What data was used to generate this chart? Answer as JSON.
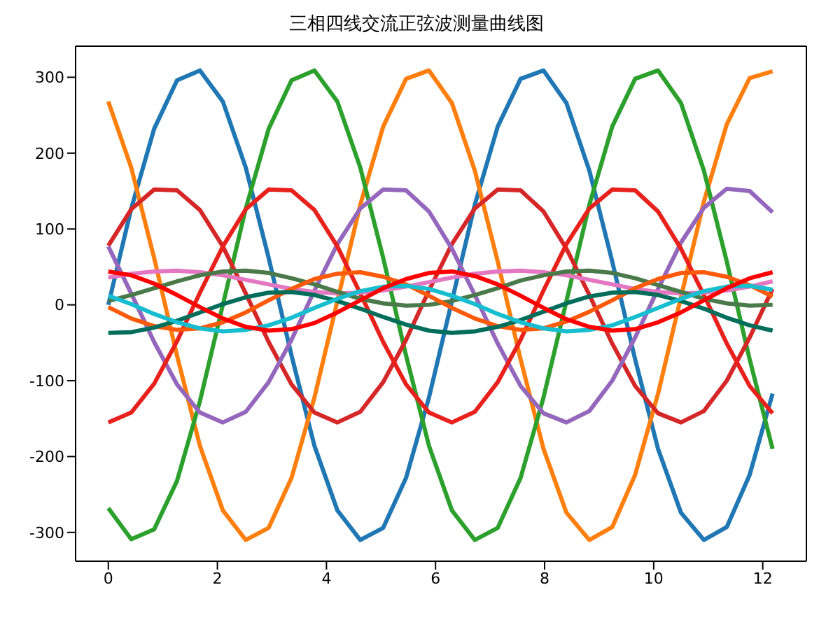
{
  "chart_data": {
    "type": "line",
    "title": "三相四线交流正弦波测量曲线图",
    "x": [
      0,
      0.42,
      0.84,
      1.26,
      1.68,
      2.1,
      2.52,
      2.94,
      3.36,
      3.78,
      4.2,
      4.62,
      5.04,
      5.46,
      5.88,
      6.3,
      6.72,
      7.14,
      7.56,
      7.98,
      8.4,
      8.82,
      9.24,
      9.66,
      10.08,
      10.5,
      10.92,
      11.34,
      11.76,
      12.18
    ],
    "series": [
      {
        "color": "#1f77b4",
        "values": [
          0,
          127,
          232,
          296,
          309,
          268,
          181,
          62,
          -67,
          -186,
          -271,
          -310,
          -294,
          -228,
          -122,
          5,
          132,
          235,
          298,
          309,
          266,
          177,
          57,
          -72,
          -190,
          -274,
          -310,
          -293,
          -224,
          -117
        ]
      },
      {
        "color": "#ff7f0e",
        "values": [
          268,
          181,
          62,
          -67,
          -186,
          -271,
          -310,
          -294,
          -228,
          -122,
          5,
          132,
          235,
          298,
          309,
          266,
          177,
          57,
          -72,
          -190,
          -274,
          -310,
          -293,
          -224,
          -117,
          10,
          136,
          238,
          299,
          308
        ]
      },
      {
        "color": "#2ca02c",
        "values": [
          -268,
          -309,
          -296,
          -232,
          -127,
          0,
          127,
          232,
          296,
          309,
          268,
          181,
          62,
          -67,
          -186,
          -271,
          -310,
          -294,
          -228,
          -122,
          5,
          132,
          235,
          298,
          309,
          266,
          177,
          57,
          -72,
          -190
        ]
      },
      {
        "color": "#d62728",
        "values": [
          78,
          126,
          152,
          151,
          125,
          77,
          15,
          -49,
          -105,
          -142,
          -155,
          -141,
          -102,
          -46,
          19,
          80,
          127,
          152,
          151,
          123,
          74,
          13,
          -51,
          -107,
          -143,
          -155,
          -140,
          -100,
          -43,
          21
        ]
      },
      {
        "color": "#9467bd",
        "values": [
          77,
          15,
          -49,
          -105,
          -142,
          -155,
          -141,
          -102,
          -46,
          19,
          80,
          127,
          152,
          151,
          123,
          74,
          13,
          -51,
          -107,
          -143,
          -155,
          -140,
          -100,
          -43,
          21,
          82,
          128,
          153,
          150,
          122
        ]
      },
      {
        "color": "#e8211c",
        "values": [
          -155,
          -142,
          -104,
          -48,
          16,
          77,
          126,
          152,
          151,
          125,
          77,
          15,
          -49,
          -105,
          -142,
          -155,
          -141,
          -102,
          -46,
          19,
          80,
          127,
          152,
          151,
          123,
          74,
          13,
          -51,
          -107,
          -143
        ]
      },
      {
        "color": "#e377c2",
        "values": [
          36,
          41,
          44,
          45,
          43,
          39,
          33,
          27,
          21,
          17,
          15,
          16,
          19,
          24,
          30,
          36,
          41,
          44,
          45,
          43,
          39,
          33,
          27,
          21,
          17,
          15,
          16,
          19,
          24,
          31
        ]
      },
      {
        "color": "#4a7a4a",
        "values": [
          5,
          13,
          22,
          31,
          39,
          44,
          45,
          42,
          35,
          27,
          17,
          8,
          2,
          -1,
          0,
          5,
          13,
          22,
          32,
          39,
          44,
          45,
          42,
          35,
          26,
          17,
          8,
          2,
          -1,
          0
        ]
      },
      {
        "color": "#ff5a0a",
        "values": [
          -3,
          -18,
          -28,
          -33,
          -31,
          -23,
          -10,
          6,
          21,
          34,
          41,
          43,
          37,
          27,
          12,
          -4,
          -18,
          -28,
          -33,
          -31,
          -22,
          -9,
          6,
          22,
          34,
          42,
          43,
          37,
          26,
          11
        ]
      },
      {
        "color": "#006e5a",
        "values": [
          -37,
          -36,
          -30,
          -21,
          -10,
          1,
          10,
          16,
          17,
          13,
          5,
          -5,
          -16,
          -26,
          -34,
          -37,
          -35,
          -29,
          -20,
          -9,
          2,
          11,
          16,
          17,
          13,
          5,
          -5,
          -17,
          -27,
          -34
        ]
      },
      {
        "color": "#17becf",
        "values": [
          12,
          1,
          -12,
          -23,
          -31,
          -35,
          -33,
          -27,
          -17,
          -4,
          8,
          18,
          24,
          25,
          21,
          12,
          1,
          -12,
          -23,
          -31,
          -35,
          -33,
          -27,
          -16,
          -4,
          8,
          18,
          24,
          25,
          20
        ]
      },
      {
        "color": "#ff0000",
        "values": [
          44,
          39,
          28,
          13,
          -3,
          -18,
          -29,
          -34,
          -32,
          -24,
          -10,
          6,
          22,
          34,
          42,
          44,
          38,
          27,
          12,
          -4,
          -19,
          -29,
          -34,
          -32,
          -23,
          -10,
          6,
          22,
          35,
          43
        ]
      }
    ],
    "xlim": [
      -0.6,
      12.8
    ],
    "xticks": [
      0,
      2,
      4,
      6,
      8,
      10,
      12
    ],
    "ylim": [
      -338,
      341
    ],
    "yticks": [
      -300,
      -200,
      -100,
      0,
      100,
      200,
      300
    ],
    "grid": false,
    "marker": "none",
    "line_style": "solid"
  }
}
